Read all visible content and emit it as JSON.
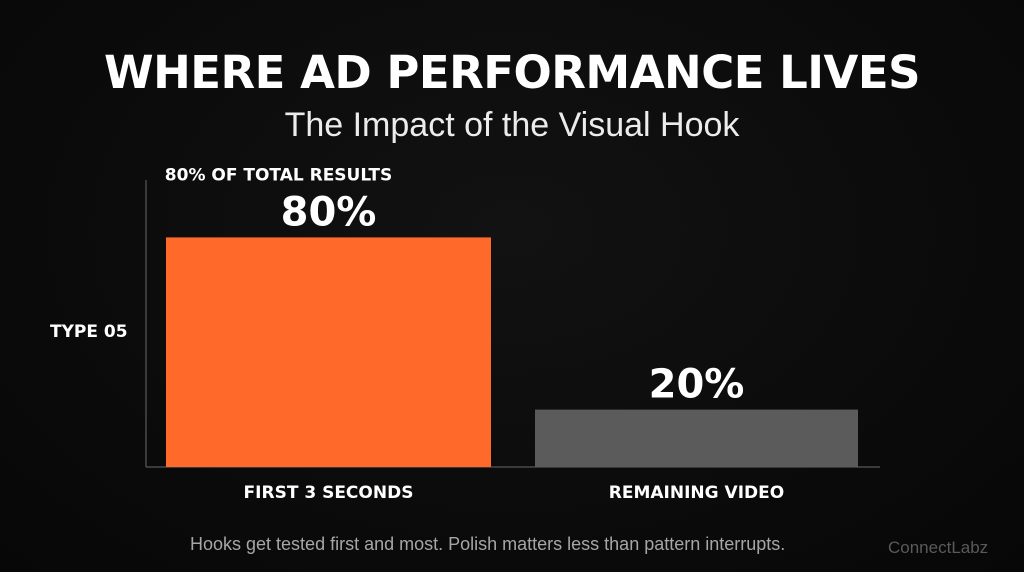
{
  "header": {
    "title": "WHERE AD PERFORMANCE LIVES",
    "subtitle": "The Impact of the Visual Hook"
  },
  "footer": {
    "note": "Hooks get tested first and most. Polish matters less than pattern interrupts.",
    "watermark": "ConnectLabz"
  },
  "chart_data": {
    "type": "bar",
    "title": "WHERE AD PERFORMANCE LIVES",
    "subtitle": "The Impact of the Visual Hook",
    "categories": [
      "FIRST 3 SECONDS",
      "REMAINING VIDEO"
    ],
    "values": [
      80,
      20
    ],
    "data_labels": [
      "80%",
      "20%"
    ],
    "unit": "%",
    "ylabel": "TYPE 05",
    "xlabel": "",
    "ylim": [
      0,
      100
    ],
    "annotations": [
      "80% OF TOTAL RESULTS"
    ],
    "grid": false,
    "legend": "none",
    "colors": [
      "#ff6a2b",
      "#5b5b5b"
    ]
  }
}
